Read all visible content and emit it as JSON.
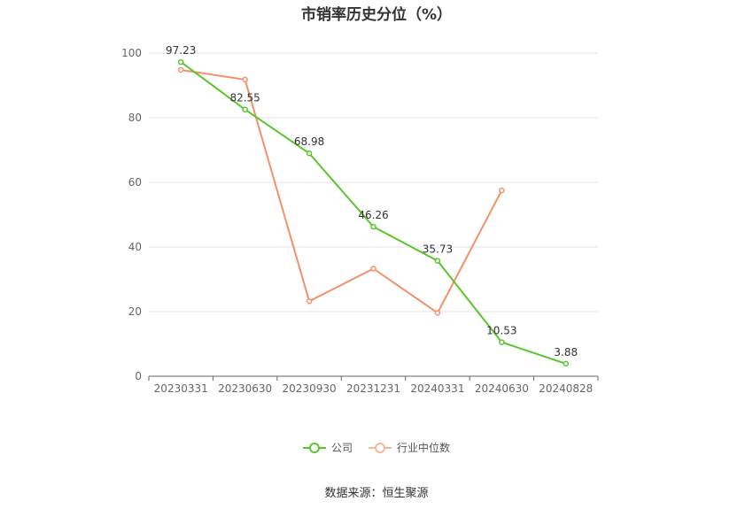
{
  "title": "市销率历史分位（%）",
  "source": "数据来源：恒生聚源",
  "legend": [
    {
      "label": "公司",
      "color": "#5ac62e"
    },
    {
      "label": "行业中位数",
      "color": "#f4906a"
    }
  ],
  "chart_data": {
    "type": "line",
    "title": "市销率历史分位（%）",
    "categories": [
      "20230331",
      "20230630",
      "20230930",
      "20231231",
      "20240331",
      "20240630",
      "20240828"
    ],
    "ylim": [
      0,
      100
    ],
    "yticks": [
      0,
      20,
      40,
      60,
      80,
      100
    ],
    "grid": true,
    "legend_position": "bottom",
    "series": [
      {
        "name": "公司",
        "color": "#5ac62e",
        "show_labels": true,
        "values": [
          97.23,
          82.55,
          68.98,
          46.26,
          35.73,
          10.53,
          3.88
        ]
      },
      {
        "name": "行业中位数",
        "color": "#f4906a",
        "show_labels": false,
        "values": [
          94.8,
          91.8,
          23.2,
          33.3,
          19.6,
          57.5,
          null
        ]
      }
    ]
  }
}
